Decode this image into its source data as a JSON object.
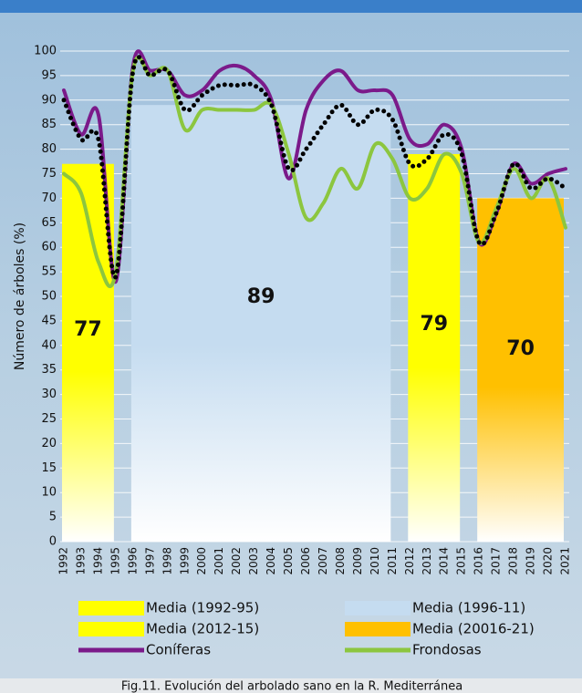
{
  "chart_data": {
    "type": "line",
    "title": "Fig.11. Evolución del arbolado sano en la R. Mediterránea",
    "y_label": "Número de árboles (%)",
    "categories": [
      "1992",
      "1993",
      "1994",
      "1995",
      "1996",
      "1997",
      "1998",
      "1999",
      "2000",
      "2001",
      "2002",
      "2003",
      "2004",
      "2005",
      "2006",
      "2007",
      "2008",
      "2009",
      "2010",
      "2011",
      "2012",
      "2013",
      "2014",
      "2015",
      "2016",
      "2017",
      "2018",
      "2019",
      "2020",
      "2021"
    ],
    "ylim": [
      0,
      100
    ],
    "yticks": [
      0,
      5,
      10,
      15,
      20,
      25,
      30,
      35,
      40,
      45,
      50,
      55,
      60,
      65,
      70,
      75,
      80,
      85,
      90,
      95,
      100
    ],
    "grid": true,
    "bars": [
      {
        "name": "Media (1992-95)",
        "value": 77,
        "start": "1992",
        "end": "1995",
        "color": "#ffff00"
      },
      {
        "name": "Media (1996-11)",
        "value": 89,
        "start": "1996",
        "end": "2011",
        "color": "#c5dcf0"
      },
      {
        "name": "Media (2012-15)",
        "value": 79,
        "start": "2012",
        "end": "2015",
        "color": "#ffff00"
      },
      {
        "name": "Media (20016-21)",
        "value": 70,
        "start": "2016",
        "end": "2021",
        "color": "#ffc000"
      }
    ],
    "series": [
      {
        "name": "Coníferas",
        "color": "#7b1a8a",
        "values": [
          92,
          83,
          87,
          53,
          97,
          96,
          96,
          91,
          92,
          96,
          97,
          95,
          90,
          74,
          88,
          94,
          96,
          92,
          92,
          91,
          82,
          81,
          85,
          80,
          61,
          67,
          77,
          73,
          75,
          76
        ]
      },
      {
        "name": "Frondosas",
        "color": "#8cc63f",
        "values": [
          75,
          71,
          57,
          55,
          96,
          95,
          96,
          84,
          88,
          88,
          88,
          88,
          89,
          79,
          66,
          69,
          76,
          72,
          81,
          78,
          70,
          72,
          79,
          75,
          61,
          68,
          76,
          70,
          74,
          64
        ]
      },
      {
        "color": "#000000",
        "style": "dotted",
        "values": [
          90,
          82,
          82,
          54,
          96,
          95,
          96,
          88,
          91,
          93,
          93,
          93,
          89,
          76,
          80,
          85,
          89,
          85,
          88,
          86,
          77,
          78,
          83,
          79,
          61,
          67,
          77,
          72,
          74,
          72
        ]
      }
    ]
  }
}
